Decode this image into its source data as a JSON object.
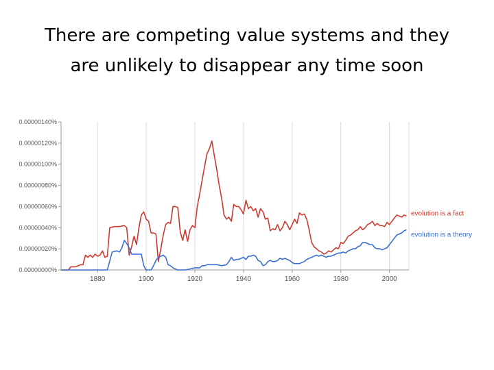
{
  "slide": {
    "title_line1": "There are competing value systems and they",
    "title_line2": "are unlikely to disappear any time soon"
  },
  "chart_data": {
    "type": "line",
    "title": "",
    "xlabel": "",
    "ylabel": "",
    "xlim": [
      1865,
      2008
    ],
    "ylim": [
      0,
      1.4e-06
    ],
    "y_tick_values": [
      0,
      2e-07,
      4e-07,
      6e-07,
      8e-07,
      1e-06,
      1.2e-06,
      1.4e-06
    ],
    "y_tick_labels": [
      "0.00000000%",
      "0.00000020%",
      "0.00000040%",
      "0.00000060%",
      "0.00000080%",
      "0.00000100%",
      "0.00000120%",
      "0.00000140%"
    ],
    "x_tick_values": [
      1880,
      1900,
      1920,
      1940,
      1960,
      1980,
      2000
    ],
    "x_tick_labels": [
      "1880",
      "1900",
      "1920",
      "1940",
      "1960",
      "1980",
      "2000"
    ],
    "grid": "vertical",
    "legend_position": "right-end",
    "series": [
      {
        "name": "evolution is a fact",
        "color": "#cc3a2f",
        "points": [
          [
            1865,
            0
          ],
          [
            1868,
            0
          ],
          [
            1869,
            3e-08
          ],
          [
            1871,
            3e-08
          ],
          [
            1873,
            5e-08
          ],
          [
            1874,
            5e-08
          ],
          [
            1875,
            1.4e-07
          ],
          [
            1876,
            1.2e-07
          ],
          [
            1877,
            1.4e-07
          ],
          [
            1878,
            1.2e-07
          ],
          [
            1879,
            1.5e-07
          ],
          [
            1880,
            1.3e-07
          ],
          [
            1881,
            1.4e-07
          ],
          [
            1882,
            1.8e-07
          ],
          [
            1883,
            1.2e-07
          ],
          [
            1884,
            1.3e-07
          ],
          [
            1885,
            4e-07
          ],
          [
            1887,
            4.1e-07
          ],
          [
            1889,
            4.1e-07
          ],
          [
            1891,
            4.2e-07
          ],
          [
            1892,
            4e-07
          ],
          [
            1893,
            1.4e-07
          ],
          [
            1894,
            2.2e-07
          ],
          [
            1895,
            3.2e-07
          ],
          [
            1896,
            2.4e-07
          ],
          [
            1897,
            4e-07
          ],
          [
            1898,
            5.2e-07
          ],
          [
            1899,
            5.5e-07
          ],
          [
            1900,
            4.8e-07
          ],
          [
            1901,
            4.6e-07
          ],
          [
            1902,
            3.5e-07
          ],
          [
            1903,
            3.5e-07
          ],
          [
            1904,
            3.4e-07
          ],
          [
            1905,
            8e-08
          ],
          [
            1906,
            2e-07
          ],
          [
            1907,
            3.3e-07
          ],
          [
            1908,
            4.3e-07
          ],
          [
            1909,
            4.5e-07
          ],
          [
            1910,
            4.4e-07
          ],
          [
            1911,
            6e-07
          ],
          [
            1912,
            6e-07
          ],
          [
            1913,
            5.9e-07
          ],
          [
            1914,
            3.6e-07
          ],
          [
            1915,
            2.8e-07
          ],
          [
            1916,
            3.8e-07
          ],
          [
            1917,
            2.7e-07
          ],
          [
            1918,
            3.8e-07
          ],
          [
            1919,
            4.2e-07
          ],
          [
            1920,
            4e-07
          ],
          [
            1921,
            6e-07
          ],
          [
            1922,
            7.2e-07
          ],
          [
            1923,
            8.5e-07
          ],
          [
            1924,
            9.8e-07
          ],
          [
            1925,
            1.1e-06
          ],
          [
            1926,
            1.15e-06
          ],
          [
            1927,
            1.22e-06
          ],
          [
            1928,
            1.08e-06
          ],
          [
            1929,
            9.5e-07
          ],
          [
            1930,
            8e-07
          ],
          [
            1931,
            6.8e-07
          ],
          [
            1932,
            5.2e-07
          ],
          [
            1933,
            4.8e-07
          ],
          [
            1934,
            5e-07
          ],
          [
            1935,
            4.6e-07
          ],
          [
            1936,
            6.2e-07
          ],
          [
            1937,
            6e-07
          ],
          [
            1938,
            6e-07
          ],
          [
            1939,
            5.7e-07
          ],
          [
            1940,
            5.3e-07
          ],
          [
            1941,
            6.6e-07
          ],
          [
            1942,
            5.8e-07
          ],
          [
            1943,
            6e-07
          ],
          [
            1944,
            5.6e-07
          ],
          [
            1945,
            5.8e-07
          ],
          [
            1946,
            5e-07
          ],
          [
            1947,
            5.8e-07
          ],
          [
            1948,
            5.5e-07
          ],
          [
            1949,
            4.8e-07
          ],
          [
            1950,
            4.9e-07
          ],
          [
            1951,
            3.7e-07
          ],
          [
            1952,
            3.9e-07
          ],
          [
            1953,
            3.8e-07
          ],
          [
            1954,
            4.3e-07
          ],
          [
            1955,
            3.7e-07
          ],
          [
            1956,
            4e-07
          ],
          [
            1957,
            4.6e-07
          ],
          [
            1958,
            4.3e-07
          ],
          [
            1959,
            3.8e-07
          ],
          [
            1960,
            4.3e-07
          ],
          [
            1961,
            4.8e-07
          ],
          [
            1962,
            4.4e-07
          ],
          [
            1963,
            5.4e-07
          ],
          [
            1964,
            5.2e-07
          ],
          [
            1965,
            5.3e-07
          ],
          [
            1966,
            4.8e-07
          ],
          [
            1967,
            3.8e-07
          ],
          [
            1968,
            2.6e-07
          ],
          [
            1969,
            2.2e-07
          ],
          [
            1970,
            2e-07
          ],
          [
            1971,
            1.8e-07
          ],
          [
            1972,
            1.7e-07
          ],
          [
            1973,
            1.5e-07
          ],
          [
            1974,
            1.6e-07
          ],
          [
            1975,
            1.8e-07
          ],
          [
            1976,
            1.7e-07
          ],
          [
            1977,
            1.9e-07
          ],
          [
            1978,
            2.1e-07
          ],
          [
            1979,
            2e-07
          ],
          [
            1980,
            2.6e-07
          ],
          [
            1981,
            2.5e-07
          ],
          [
            1982,
            2.8e-07
          ],
          [
            1983,
            3.2e-07
          ],
          [
            1984,
            3.3e-07
          ],
          [
            1985,
            3.5e-07
          ],
          [
            1986,
            3.7e-07
          ],
          [
            1987,
            3.8e-07
          ],
          [
            1988,
            4.1e-07
          ],
          [
            1989,
            3.8e-07
          ],
          [
            1990,
            4e-07
          ],
          [
            1991,
            4.3e-07
          ],
          [
            1992,
            4.4e-07
          ],
          [
            1993,
            4.6e-07
          ],
          [
            1994,
            4.2e-07
          ],
          [
            1995,
            4.4e-07
          ],
          [
            1996,
            4.2e-07
          ],
          [
            1997,
            4.2e-07
          ],
          [
            1998,
            4.1e-07
          ],
          [
            1999,
            4.5e-07
          ],
          [
            2000,
            4.3e-07
          ],
          [
            2001,
            4.6e-07
          ],
          [
            2002,
            4.9e-07
          ],
          [
            2003,
            5.2e-07
          ],
          [
            2004,
            5.1e-07
          ],
          [
            2005,
            5e-07
          ],
          [
            2006,
            5.2e-07
          ],
          [
            2007,
            5.1e-07
          ]
        ]
      },
      {
        "name": "evolution is a theory",
        "color": "#3a6fd0",
        "points": [
          [
            1865,
            0
          ],
          [
            1873,
            0
          ],
          [
            1875,
            0
          ],
          [
            1883,
            0
          ],
          [
            1884,
            0
          ],
          [
            1886,
            1.7e-07
          ],
          [
            1888,
            1.8e-07
          ],
          [
            1889,
            1.7e-07
          ],
          [
            1890,
            2.1e-07
          ],
          [
            1891,
            2.8e-07
          ],
          [
            1892,
            2.5e-07
          ],
          [
            1893,
            2.1e-07
          ],
          [
            1894,
            1.5e-07
          ],
          [
            1896,
            1.5e-07
          ],
          [
            1898,
            1.5e-07
          ],
          [
            1899,
            4e-08
          ],
          [
            1900,
            0
          ],
          [
            1901,
            0
          ],
          [
            1902,
            0
          ],
          [
            1903,
            4e-08
          ],
          [
            1904,
            9e-08
          ],
          [
            1905,
            1.2e-07
          ],
          [
            1906,
            1.3e-07
          ],
          [
            1907,
            1.4e-07
          ],
          [
            1908,
            1.2e-07
          ],
          [
            1909,
            5e-08
          ],
          [
            1910,
            4e-08
          ],
          [
            1911,
            2e-08
          ],
          [
            1912,
            1e-08
          ],
          [
            1913,
            0
          ],
          [
            1916,
            0
          ],
          [
            1918,
            1e-08
          ],
          [
            1920,
            2e-08
          ],
          [
            1922,
            2e-08
          ],
          [
            1923,
            4e-08
          ],
          [
            1924,
            4e-08
          ],
          [
            1925,
            5e-08
          ],
          [
            1927,
            5e-08
          ],
          [
            1929,
            5e-08
          ],
          [
            1931,
            4e-08
          ],
          [
            1933,
            5e-08
          ],
          [
            1934,
            8e-08
          ],
          [
            1935,
            1.2e-07
          ],
          [
            1936,
            9e-08
          ],
          [
            1937,
            1e-07
          ],
          [
            1938,
            1e-07
          ],
          [
            1939,
            1.1e-07
          ],
          [
            1940,
            1.2e-07
          ],
          [
            1941,
            1e-07
          ],
          [
            1942,
            1.3e-07
          ],
          [
            1943,
            1.3e-07
          ],
          [
            1944,
            1.4e-07
          ],
          [
            1945,
            1.3e-07
          ],
          [
            1946,
            9e-08
          ],
          [
            1947,
            8e-08
          ],
          [
            1948,
            4e-08
          ],
          [
            1949,
            5e-08
          ],
          [
            1950,
            8e-08
          ],
          [
            1951,
            9e-08
          ],
          [
            1952,
            8e-08
          ],
          [
            1953,
            8e-08
          ],
          [
            1954,
            9e-08
          ],
          [
            1955,
            1.1e-07
          ],
          [
            1956,
            1e-07
          ],
          [
            1957,
            1.1e-07
          ],
          [
            1958,
            1e-07
          ],
          [
            1959,
            9e-08
          ],
          [
            1960,
            7e-08
          ],
          [
            1961,
            6e-08
          ],
          [
            1962,
            6e-08
          ],
          [
            1963,
            6e-08
          ],
          [
            1964,
            7e-08
          ],
          [
            1965,
            8e-08
          ],
          [
            1966,
            1e-07
          ],
          [
            1967,
            1.1e-07
          ],
          [
            1968,
            1.2e-07
          ],
          [
            1969,
            1.3e-07
          ],
          [
            1970,
            1.4e-07
          ],
          [
            1971,
            1.3e-07
          ],
          [
            1972,
            1.4e-07
          ],
          [
            1973,
            1.3e-07
          ],
          [
            1974,
            1.2e-07
          ],
          [
            1975,
            1.3e-07
          ],
          [
            1976,
            1.3e-07
          ],
          [
            1977,
            1.4e-07
          ],
          [
            1978,
            1.5e-07
          ],
          [
            1979,
            1.6e-07
          ],
          [
            1980,
            1.6e-07
          ],
          [
            1981,
            1.7e-07
          ],
          [
            1982,
            1.6e-07
          ],
          [
            1983,
            1.8e-07
          ],
          [
            1984,
            1.9e-07
          ],
          [
            1985,
            2e-07
          ],
          [
            1986,
            2e-07
          ],
          [
            1987,
            2.2e-07
          ],
          [
            1988,
            2.3e-07
          ],
          [
            1989,
            2.6e-07
          ],
          [
            1990,
            2.6e-07
          ],
          [
            1991,
            2.5e-07
          ],
          [
            1992,
            2.4e-07
          ],
          [
            1993,
            2.4e-07
          ],
          [
            1994,
            2.1e-07
          ],
          [
            1995,
            2e-07
          ],
          [
            1996,
            2e-07
          ],
          [
            1997,
            1.9e-07
          ],
          [
            1998,
            2e-07
          ],
          [
            1999,
            2.1e-07
          ],
          [
            2000,
            2.4e-07
          ],
          [
            2001,
            2.7e-07
          ],
          [
            2002,
            3e-07
          ],
          [
            2003,
            3.3e-07
          ],
          [
            2004,
            3.4e-07
          ],
          [
            2005,
            3.5e-07
          ],
          [
            2006,
            3.7e-07
          ],
          [
            2007,
            3.8e-07
          ]
        ]
      }
    ]
  }
}
